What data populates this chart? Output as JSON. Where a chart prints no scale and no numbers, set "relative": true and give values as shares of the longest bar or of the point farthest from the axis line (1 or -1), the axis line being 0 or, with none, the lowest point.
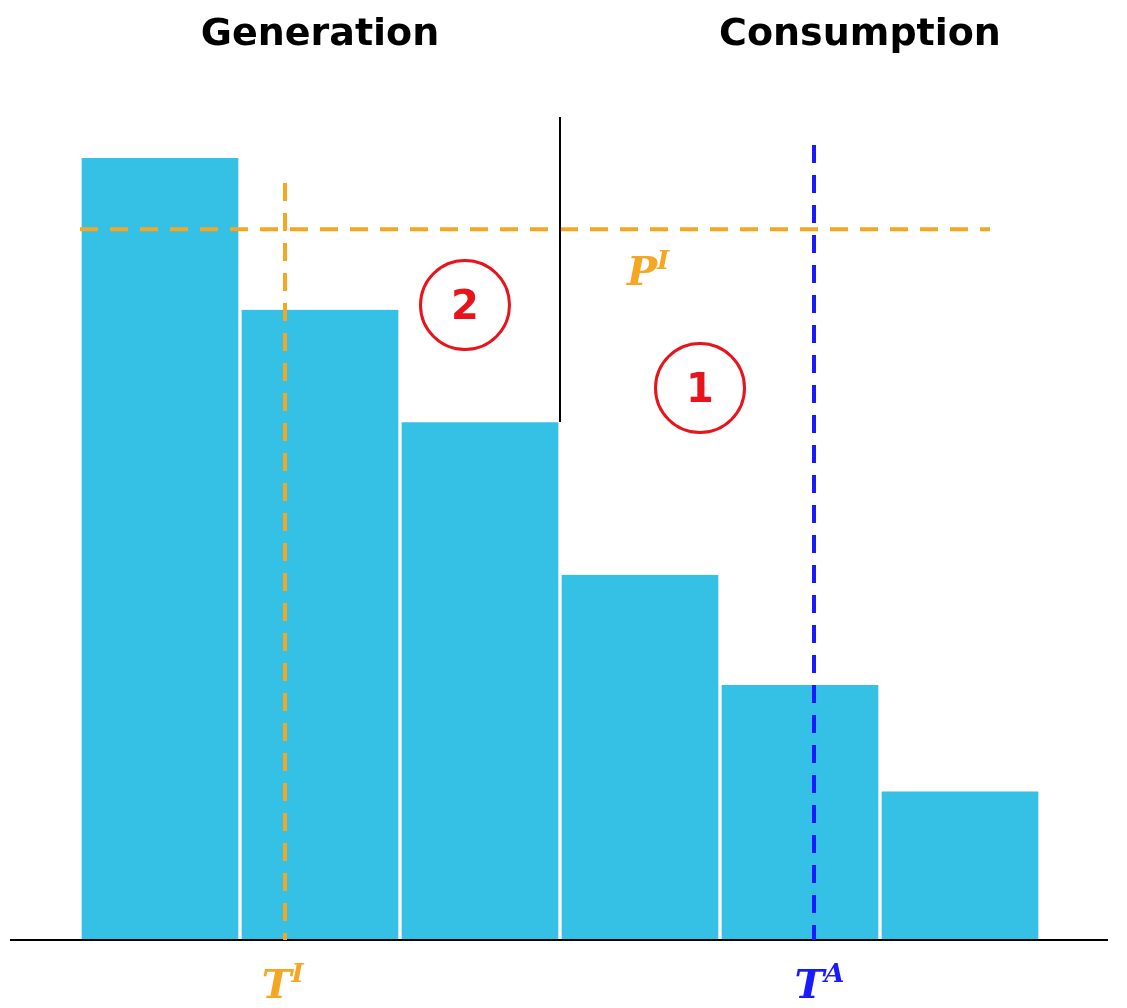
{
  "chart_data": {
    "type": "bar",
    "relative": true,
    "categories": [
      null,
      null,
      null,
      null,
      null,
      null
    ],
    "values": [
      1,
      0.806,
      0.662,
      0.467,
      0.326,
      0.19
    ],
    "color": "#35c0e6",
    "ref_lines": [
      {
        "axis": "y",
        "value": 0.909,
        "label": "P$^{I}$",
        "color": "#f5a623",
        "line_style": "dashed"
      }
    ],
    "annotations": [
      "Generation",
      "Consumption",
      "2",
      "1",
      "T$^{I}$",
      "T$^{A}$"
    ],
    "grid": false,
    "legend": false
  }
}
